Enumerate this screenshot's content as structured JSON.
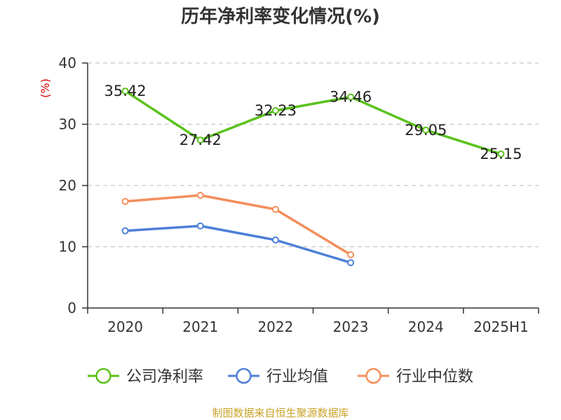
{
  "chart_data": {
    "type": "line",
    "title": "历年净利率变化情况(%)",
    "ylabel": "(%)",
    "xlabel": "",
    "categories": [
      "2020",
      "2021",
      "2022",
      "2023",
      "2024",
      "2025H1"
    ],
    "ylim": [
      0,
      40
    ],
    "yticks": [
      0,
      10,
      20,
      30,
      40
    ],
    "grid": true,
    "legend_position": "bottom",
    "series": [
      {
        "name": "公司净利率",
        "color": "#5bc21d",
        "show_labels": true,
        "values": [
          35.42,
          27.42,
          32.23,
          34.46,
          29.05,
          25.15
        ],
        "labels": [
          "35.42",
          "27.42",
          "32.23",
          "34.46",
          "29.05",
          "25.15"
        ]
      },
      {
        "name": "行业均值",
        "color": "#4d7fd8",
        "show_labels": false,
        "values": [
          12.6,
          13.4,
          11.1,
          7.4,
          null,
          null
        ]
      },
      {
        "name": "行业中位数",
        "color": "#f48e5b",
        "show_labels": false,
        "values": [
          17.4,
          18.4,
          16.1,
          8.7,
          null,
          null
        ]
      }
    ]
  },
  "source": "制图数据来自恒生聚源数据库"
}
